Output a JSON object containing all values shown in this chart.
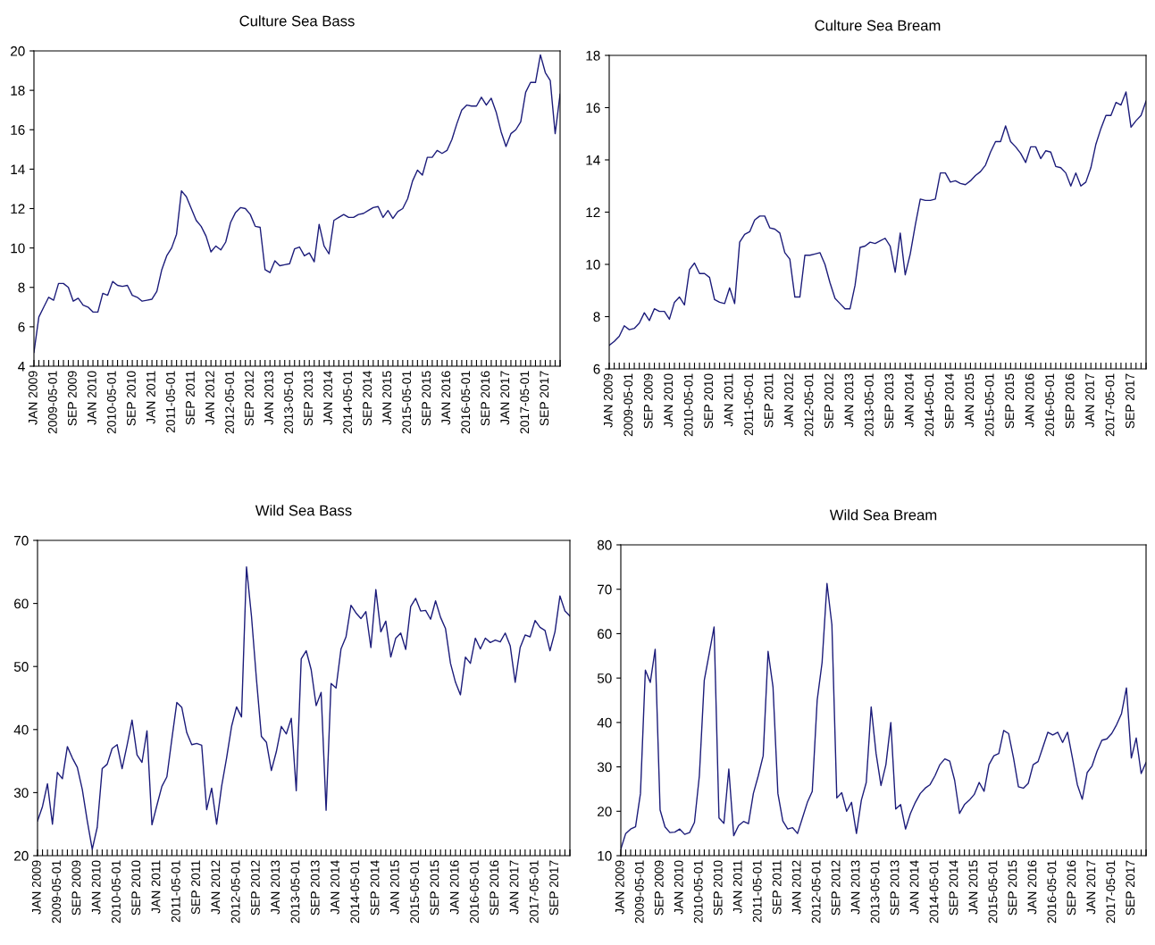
{
  "chart_data": [
    {
      "type": "line",
      "title": "Culture Sea Bass",
      "ylim": [
        4,
        20
      ],
      "yticks": [
        4,
        6,
        8,
        10,
        12,
        14,
        16,
        18,
        20
      ],
      "grid": false,
      "legend": false,
      "categories": [
        "JAN 2009",
        null,
        null,
        null,
        "2009-05-01",
        null,
        null,
        null,
        "SEP 2009",
        null,
        null,
        null,
        "JAN 2010",
        null,
        null,
        null,
        "2010-05-01",
        null,
        null,
        null,
        "SEP 2010",
        null,
        null,
        null,
        "JAN 2011",
        null,
        null,
        null,
        "2011-05-01",
        null,
        null,
        null,
        "SEP 2011",
        null,
        null,
        null,
        "JAN 2012",
        null,
        null,
        null,
        "2012-05-01",
        null,
        null,
        null,
        "SEP 2012",
        null,
        null,
        null,
        "JAN 2013",
        null,
        null,
        null,
        "2013-05-01",
        null,
        null,
        null,
        "SEP 2013",
        null,
        null,
        null,
        "JAN 2014",
        null,
        null,
        null,
        "2014-05-01",
        null,
        null,
        null,
        "SEP 2014",
        null,
        null,
        null,
        "JAN 2015",
        null,
        null,
        null,
        "2015-05-01",
        null,
        null,
        null,
        "SEP 2015",
        null,
        null,
        null,
        "JAN 2016",
        null,
        null,
        null,
        "2016-05-01",
        null,
        null,
        null,
        "SEP 2016",
        null,
        null,
        null,
        "JAN 2017",
        null,
        null,
        null,
        "2017-05-01",
        null,
        null,
        null,
        "SEP 2017",
        null,
        null,
        null
      ],
      "series": [
        {
          "color": "#1c1c7a",
          "values": [
            4.7,
            6.5,
            7.0,
            7.5,
            7.35,
            8.2,
            8.2,
            8.0,
            7.3,
            7.45,
            7.1,
            7.0,
            6.75,
            6.75,
            7.7,
            7.6,
            8.3,
            8.1,
            8.05,
            8.1,
            7.6,
            7.5,
            7.3,
            7.35,
            7.4,
            7.8,
            8.9,
            9.6,
            10.0,
            10.7,
            12.9,
            12.6,
            12.0,
            11.4,
            11.1,
            10.6,
            9.8,
            10.1,
            9.9,
            10.3,
            11.3,
            11.8,
            12.05,
            12.0,
            11.7,
            11.1,
            11.05,
            8.9,
            8.75,
            9.35,
            9.1,
            9.15,
            9.2,
            9.95,
            10.05,
            9.6,
            9.75,
            9.3,
            11.2,
            10.1,
            9.7,
            11.4,
            11.55,
            11.7,
            11.55,
            11.55,
            11.7,
            11.75,
            11.9,
            12.05,
            12.1,
            11.55,
            11.9,
            11.5,
            11.85,
            12.0,
            12.5,
            13.4,
            13.95,
            13.7,
            14.6,
            14.6,
            14.95,
            14.8,
            14.95,
            15.5,
            16.3,
            17.0,
            17.25,
            17.2,
            17.2,
            17.65,
            17.25,
            17.6,
            16.9,
            15.9,
            15.15,
            15.8,
            16.0,
            16.4,
            17.9,
            18.4,
            18.4,
            19.8,
            18.9,
            18.5,
            15.8,
            17.8
          ]
        }
      ]
    },
    {
      "type": "line",
      "title": "Culture Sea Bream",
      "ylim": [
        6,
        18
      ],
      "yticks": [
        6,
        8,
        10,
        12,
        14,
        16,
        18
      ],
      "grid": false,
      "legend": false,
      "categories": [
        "JAN 2009",
        null,
        null,
        null,
        "2009-05-01",
        null,
        null,
        null,
        "SEP 2009",
        null,
        null,
        null,
        "JAN 2010",
        null,
        null,
        null,
        "2010-05-01",
        null,
        null,
        null,
        "SEP 2010",
        null,
        null,
        null,
        "JAN 2011",
        null,
        null,
        null,
        "2011-05-01",
        null,
        null,
        null,
        "SEP 2011",
        null,
        null,
        null,
        "JAN 2012",
        null,
        null,
        null,
        "2012-05-01",
        null,
        null,
        null,
        "SEP 2012",
        null,
        null,
        null,
        "JAN 2013",
        null,
        null,
        null,
        "2013-05-01",
        null,
        null,
        null,
        "SEP 2013",
        null,
        null,
        null,
        "JAN 2014",
        null,
        null,
        null,
        "2014-05-01",
        null,
        null,
        null,
        "SEP 2014",
        null,
        null,
        null,
        "JAN 2015",
        null,
        null,
        null,
        "2015-05-01",
        null,
        null,
        null,
        "SEP 2015",
        null,
        null,
        null,
        "JAN 2016",
        null,
        null,
        null,
        "2016-05-01",
        null,
        null,
        null,
        "SEP 2016",
        null,
        null,
        null,
        "JAN 2017",
        null,
        null,
        null,
        "2017-05-01",
        null,
        null,
        null,
        "SEP 2017",
        null,
        null,
        null
      ],
      "series": [
        {
          "color": "#1c1c7a",
          "values": [
            6.9,
            7.05,
            7.25,
            7.65,
            7.5,
            7.55,
            7.75,
            8.15,
            7.85,
            8.3,
            8.2,
            8.2,
            7.9,
            8.55,
            8.75,
            8.45,
            9.8,
            10.05,
            9.65,
            9.65,
            9.5,
            8.65,
            8.55,
            8.5,
            9.1,
            8.5,
            10.85,
            11.15,
            11.25,
            11.7,
            11.85,
            11.85,
            11.4,
            11.35,
            11.2,
            10.45,
            10.2,
            8.75,
            8.75,
            10.35,
            10.35,
            10.4,
            10.45,
            10.0,
            9.3,
            8.7,
            8.5,
            8.3,
            8.3,
            9.2,
            10.65,
            10.7,
            10.85,
            10.8,
            10.9,
            11.0,
            10.7,
            9.7,
            11.2,
            9.6,
            10.4,
            11.5,
            12.5,
            12.45,
            12.45,
            12.5,
            13.5,
            13.5,
            13.15,
            13.2,
            13.1,
            13.05,
            13.2,
            13.4,
            13.55,
            13.8,
            14.3,
            14.7,
            14.7,
            15.3,
            14.7,
            14.5,
            14.25,
            13.9,
            14.5,
            14.5,
            14.05,
            14.35,
            14.3,
            13.75,
            13.7,
            13.5,
            13.0,
            13.5,
            13.0,
            13.15,
            13.7,
            14.6,
            15.2,
            15.7,
            15.7,
            16.2,
            16.1,
            16.6,
            15.25,
            15.5,
            15.7,
            16.25
          ]
        }
      ]
    },
    {
      "type": "line",
      "title": "Wild Sea Bass",
      "ylim": [
        20,
        70
      ],
      "yticks": [
        20,
        30,
        40,
        50,
        60,
        70
      ],
      "grid": false,
      "legend": false,
      "categories": [
        "JAN 2009",
        null,
        null,
        null,
        "2009-05-01",
        null,
        null,
        null,
        "SEP 2009",
        null,
        null,
        null,
        "JAN 2010",
        null,
        null,
        null,
        "2010-05-01",
        null,
        null,
        null,
        "SEP 2010",
        null,
        null,
        null,
        "JAN 2011",
        null,
        null,
        null,
        "2011-05-01",
        null,
        null,
        null,
        "SEP 2011",
        null,
        null,
        null,
        "JAN 2012",
        null,
        null,
        null,
        "2012-05-01",
        null,
        null,
        null,
        "SEP 2012",
        null,
        null,
        null,
        "JAN 2013",
        null,
        null,
        null,
        "2013-05-01",
        null,
        null,
        null,
        "SEP 2013",
        null,
        null,
        null,
        "JAN 2014",
        null,
        null,
        null,
        "2014-05-01",
        null,
        null,
        null,
        "SEP 2014",
        null,
        null,
        null,
        "JAN 2015",
        null,
        null,
        null,
        "2015-05-01",
        null,
        null,
        null,
        "SEP 2015",
        null,
        null,
        null,
        "JAN 2016",
        null,
        null,
        null,
        "2016-05-01",
        null,
        null,
        null,
        "SEP 2016",
        null,
        null,
        null,
        "JAN 2017",
        null,
        null,
        null,
        "2017-05-01",
        null,
        null,
        null,
        "SEP 2017",
        null,
        null,
        null
      ],
      "series": [
        {
          "color": "#1c1c7a",
          "values": [
            25.5,
            27.8,
            31.4,
            25.0,
            33.2,
            32.2,
            37.3,
            35.5,
            34.0,
            30.5,
            25.5,
            21.0,
            24.5,
            33.8,
            34.5,
            37.0,
            37.6,
            33.8,
            37.5,
            41.5,
            36.0,
            34.8,
            39.8,
            24.9,
            28.0,
            31.0,
            32.5,
            38.5,
            44.3,
            43.5,
            39.5,
            37.6,
            37.8,
            37.5,
            27.3,
            30.7,
            25.0,
            31.0,
            35.5,
            40.5,
            43.6,
            42.0,
            65.8,
            58.0,
            48.0,
            38.9,
            38.0,
            33.5,
            36.5,
            40.5,
            39.3,
            41.8,
            30.3,
            51.2,
            52.5,
            49.5,
            43.8,
            45.9,
            27.2,
            47.3,
            46.6,
            52.8,
            54.7,
            59.7,
            58.5,
            57.6,
            58.7,
            53.0,
            62.2,
            55.5,
            57.2,
            51.5,
            54.5,
            55.3,
            52.7,
            59.5,
            60.8,
            58.8,
            58.9,
            57.5,
            60.4,
            57.8,
            56.0,
            50.5,
            47.5,
            45.5,
            51.5,
            50.5,
            54.5,
            52.8,
            54.5,
            53.8,
            54.2,
            53.9,
            55.3,
            53.3,
            47.5,
            53.0,
            55.0,
            54.7,
            57.3,
            56.2,
            55.7,
            52.5,
            55.5,
            61.2,
            58.8,
            58.0
          ]
        }
      ]
    },
    {
      "type": "line",
      "title": "Wild Sea Bream",
      "ylim": [
        10,
        80
      ],
      "yticks": [
        10,
        20,
        30,
        40,
        50,
        60,
        70,
        80
      ],
      "grid": false,
      "legend": false,
      "categories": [
        "JAN 2009",
        null,
        null,
        null,
        "2009-05-01",
        null,
        null,
        null,
        "SEP 2009",
        null,
        null,
        null,
        "JAN 2010",
        null,
        null,
        null,
        "2010-05-01",
        null,
        null,
        null,
        "SEP 2010",
        null,
        null,
        null,
        "JAN 2011",
        null,
        null,
        null,
        "2011-05-01",
        null,
        null,
        null,
        "SEP 2011",
        null,
        null,
        null,
        "JAN 2012",
        null,
        null,
        null,
        "2012-05-01",
        null,
        null,
        null,
        "SEP 2012",
        null,
        null,
        null,
        "JAN 2013",
        null,
        null,
        null,
        "2013-05-01",
        null,
        null,
        null,
        "SEP 2013",
        null,
        null,
        null,
        "JAN 2014",
        null,
        null,
        null,
        "2014-05-01",
        null,
        null,
        null,
        "SEP 2014",
        null,
        null,
        null,
        "JAN 2015",
        null,
        null,
        null,
        "2015-05-01",
        null,
        null,
        null,
        "SEP 2015",
        null,
        null,
        null,
        "JAN 2016",
        null,
        null,
        null,
        "2016-05-01",
        null,
        null,
        null,
        "SEP 2016",
        null,
        null,
        null,
        "JAN 2017",
        null,
        null,
        null,
        "2017-05-01",
        null,
        null,
        null,
        "SEP 2017",
        null,
        null,
        null
      ],
      "series": [
        {
          "color": "#1c1c7a",
          "values": [
            11.5,
            15.0,
            16.0,
            16.5,
            24,
            51.8,
            49.0,
            56.5,
            20.3,
            16.5,
            15.2,
            15.3,
            16.0,
            14.8,
            15.2,
            17.5,
            28,
            49.5,
            55.5,
            61.5,
            18.5,
            17.3,
            29.5,
            14.5,
            16.8,
            17.7,
            17.2,
            24,
            28,
            32.5,
            56.0,
            48.0,
            24.0,
            17.8,
            16.0,
            16.3,
            15.0,
            18.5,
            22.0,
            24.5,
            45.0,
            53.5,
            71.3,
            62.0,
            23.0,
            24.2,
            20.0,
            22.0,
            15.0,
            22.5,
            26.5,
            43.5,
            33.0,
            25.8,
            30.5,
            40.0,
            20.5,
            21.5,
            16.0,
            19.5,
            22.0,
            24.0,
            25.2,
            26.0,
            28.0,
            30.5,
            31.8,
            31.3,
            27.0,
            19.5,
            21.5,
            22.5,
            23.8,
            26.5,
            24.5,
            30.5,
            32.5,
            33.0,
            38.2,
            37.5,
            32.0,
            25.5,
            25.2,
            26.3,
            30.5,
            31.2,
            34.5,
            37.8,
            37.2,
            37.8,
            35.5,
            37.8,
            32.0,
            26.0,
            22.7,
            28.7,
            30.2,
            33.5,
            36.0,
            36.3,
            37.5,
            39.5,
            42.0,
            47.8,
            32.0,
            36.5,
            28.5,
            31.0
          ]
        }
      ]
    }
  ]
}
